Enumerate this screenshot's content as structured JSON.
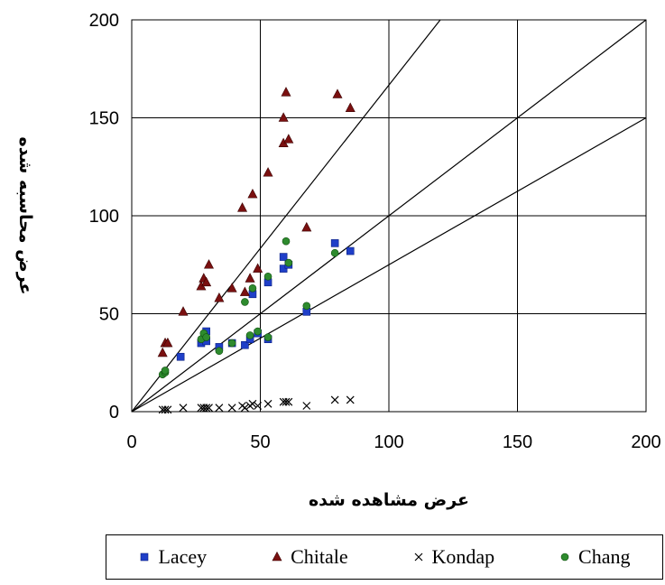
{
  "chart_data": {
    "type": "scatter",
    "xlabel": "عرض مشاهده شده",
    "ylabel": "عرض محاسبه شده",
    "xlim": [
      0,
      200
    ],
    "ylim": [
      0,
      200
    ],
    "xticks": [
      "0",
      "50",
      "100",
      "150",
      "200"
    ],
    "yticks": [
      "0",
      "50",
      "100",
      "150",
      "200"
    ],
    "grid": true,
    "legend_position": "bottom",
    "reference_lines": [
      {
        "slope": 1.667
      },
      {
        "slope": 1.0
      },
      {
        "slope": 0.75
      }
    ],
    "series": [
      {
        "name": "Lacey",
        "marker": "square",
        "color": "#1f3fc8",
        "points": [
          [
            19,
            28
          ],
          [
            27,
            35
          ],
          [
            29,
            36
          ],
          [
            29,
            41
          ],
          [
            34,
            33
          ],
          [
            39,
            35
          ],
          [
            44,
            34
          ],
          [
            46,
            37
          ],
          [
            47,
            60
          ],
          [
            49,
            40
          ],
          [
            53,
            37
          ],
          [
            53,
            66
          ],
          [
            59,
            73
          ],
          [
            59,
            79
          ],
          [
            61,
            75
          ],
          [
            68,
            51
          ],
          [
            79,
            86
          ],
          [
            85,
            82
          ]
        ]
      },
      {
        "name": "Chitale",
        "marker": "triangle",
        "color": "#7a1010",
        "points": [
          [
            12,
            30
          ],
          [
            13,
            35
          ],
          [
            14,
            35
          ],
          [
            20,
            51
          ],
          [
            27,
            64
          ],
          [
            28,
            68
          ],
          [
            29,
            66
          ],
          [
            30,
            75
          ],
          [
            34,
            58
          ],
          [
            39,
            63
          ],
          [
            43,
            104
          ],
          [
            44,
            61
          ],
          [
            46,
            68
          ],
          [
            47,
            111
          ],
          [
            49,
            73
          ],
          [
            53,
            122
          ],
          [
            59,
            137
          ],
          [
            59,
            150
          ],
          [
            60,
            163
          ],
          [
            61,
            139
          ],
          [
            68,
            94
          ],
          [
            80,
            162
          ],
          [
            85,
            155
          ]
        ]
      },
      {
        "name": "Kondap",
        "marker": "x",
        "color": "#000000",
        "points": [
          [
            12,
            1
          ],
          [
            13,
            1
          ],
          [
            14,
            1
          ],
          [
            20,
            2
          ],
          [
            27,
            2
          ],
          [
            28,
            2
          ],
          [
            29,
            2
          ],
          [
            30,
            2
          ],
          [
            34,
            2
          ],
          [
            39,
            2
          ],
          [
            43,
            3
          ],
          [
            44,
            2
          ],
          [
            46,
            3
          ],
          [
            47,
            4
          ],
          [
            49,
            3
          ],
          [
            53,
            4
          ],
          [
            59,
            5
          ],
          [
            60,
            5
          ],
          [
            61,
            5
          ],
          [
            68,
            3
          ],
          [
            79,
            6
          ],
          [
            85,
            6
          ]
        ]
      },
      {
        "name": "Chang",
        "marker": "circle",
        "color": "#2e8b2e",
        "points": [
          [
            12,
            19
          ],
          [
            13,
            20
          ],
          [
            13,
            21
          ],
          [
            27,
            37
          ],
          [
            28,
            40
          ],
          [
            29,
            38
          ],
          [
            34,
            31
          ],
          [
            39,
            35
          ],
          [
            44,
            56
          ],
          [
            46,
            39
          ],
          [
            47,
            63
          ],
          [
            49,
            41
          ],
          [
            53,
            38
          ],
          [
            53,
            69
          ],
          [
            61,
            76
          ],
          [
            60,
            87
          ],
          [
            68,
            54
          ],
          [
            79,
            81
          ]
        ]
      }
    ]
  }
}
